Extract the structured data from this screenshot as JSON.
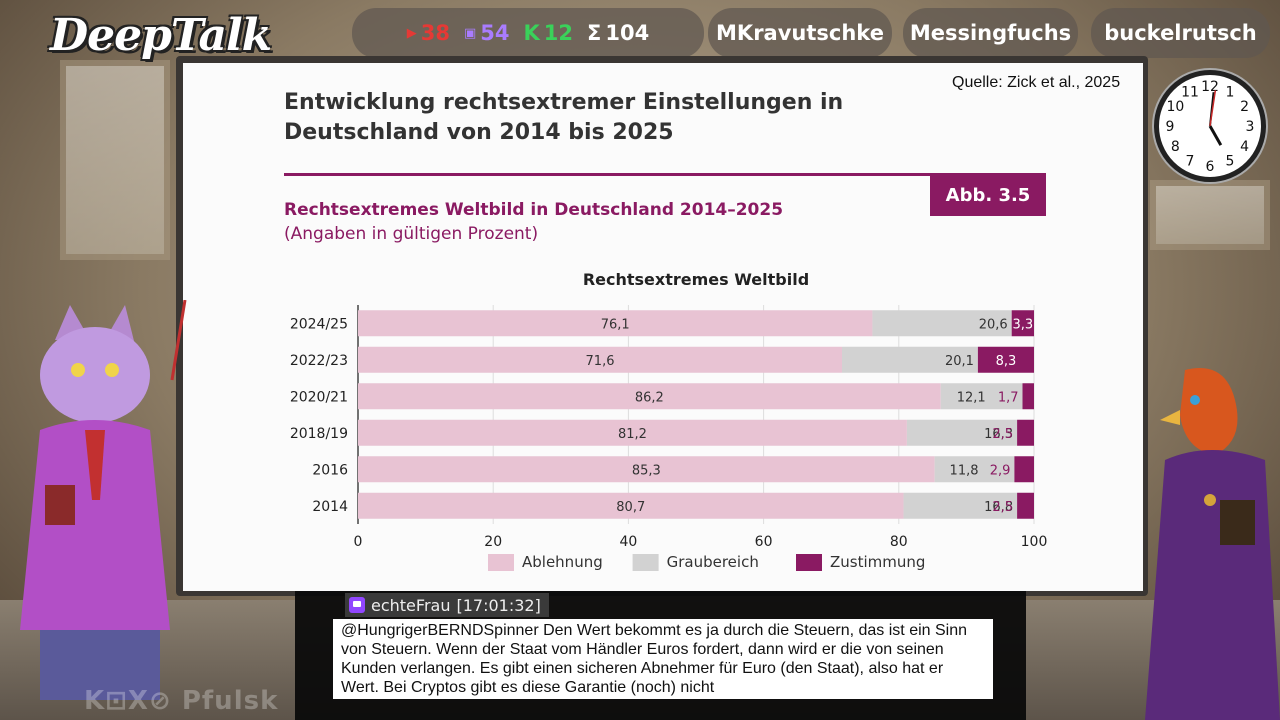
{
  "stream": {
    "logo": "DeepTalk",
    "stats": [
      {
        "icon": "youtube-icon",
        "value": "38",
        "color": "#e53935"
      },
      {
        "icon": "twitch-icon",
        "value": "54",
        "color": "#a97cff"
      },
      {
        "icon": "kick-icon",
        "value": "12",
        "color": "#3ad15a"
      },
      {
        "icon": "sum-icon",
        "label": "Σ",
        "value": "104",
        "color": "#ffffff"
      }
    ],
    "participants": [
      "MKravutschke",
      "Messingfuchs",
      "buckelrutsch"
    ],
    "watermark": "K⊡X⊘ Pfulsk"
  },
  "slide": {
    "source": "Quelle: Zick et al., 2025",
    "title_line1": "Entwicklung rechtsextremer Einstellungen in",
    "title_line2": "Deutschland von 2014 bis 2025",
    "badge": "Abb. 3.5",
    "subtitle": "Rechtsextremes Weltbild in Deutschland 2014–2025",
    "subnote": "(Angaben in gültigen Prozent)",
    "chart_title": "Rechtsextremes Weltbild"
  },
  "chart_data": {
    "type": "bar",
    "orientation": "horizontal",
    "stacked": true,
    "title": "Rechtsextremes Weltbild",
    "categories": [
      "2024/25",
      "2022/23",
      "2020/21",
      "2018/19",
      "2016",
      "2014"
    ],
    "series": [
      {
        "name": "Ablehnung",
        "values": [
          76.1,
          71.6,
          86.2,
          81.2,
          85.3,
          80.7
        ],
        "labels": [
          "76,1",
          "71,6",
          "86,2",
          "81,2",
          "85,3",
          "80,7"
        ],
        "color": "#e8c3d3"
      },
      {
        "name": "Graubereich",
        "values": [
          20.6,
          20.1,
          12.1,
          16.3,
          11.8,
          16.8
        ],
        "labels": [
          "20,6",
          "20,1",
          "12,1",
          "16,3",
          "11,8",
          "16,8"
        ],
        "color": "#d2d2d2"
      },
      {
        "name": "Zustimmung",
        "values": [
          3.3,
          8.3,
          1.7,
          2.5,
          2.9,
          2.5
        ],
        "labels": [
          "3,3",
          "8,3",
          "1,7",
          "2,5",
          "2,9",
          "2,5"
        ],
        "color": "#8a1a62"
      }
    ],
    "xlim": [
      0,
      100
    ],
    "xticks": [
      "0",
      "20",
      "40",
      "60",
      "80",
      "100"
    ],
    "grid": true,
    "legend": "bottom"
  },
  "chat": {
    "user": "echteFrau",
    "time": "[17:01:32]",
    "message": "@HungrigerBERNDSpinner Den Wert bekommt es ja durch die Steuern, das ist ein Sinn von Steuern. Wenn der Staat vom Händler Euros fordert, dann wird er die von seinen Kunden verlangen. Es gibt einen sicheren Abnehmer für Euro (den Staat), also hat er Wert. Bei Cryptos gibt es diese Garantie (noch) nicht"
  },
  "clock": {
    "hour": 5,
    "minute": 1
  }
}
